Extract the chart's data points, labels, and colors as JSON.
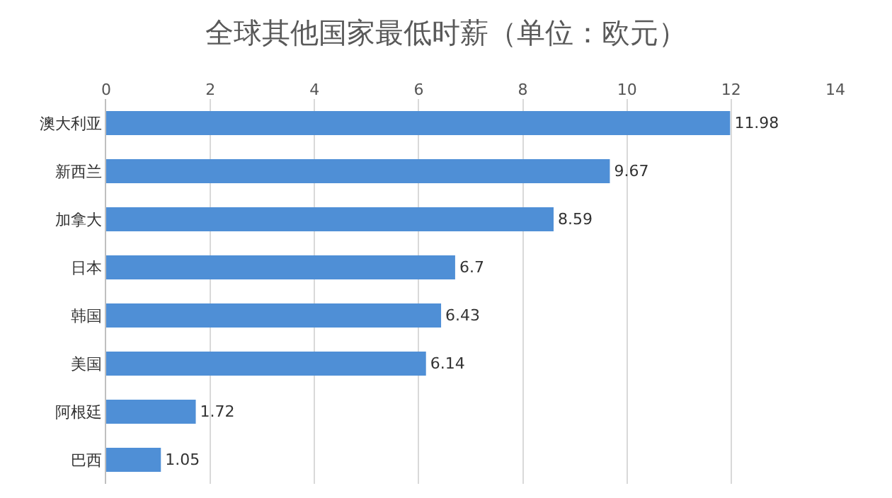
{
  "chart_data": {
    "type": "bar",
    "orientation": "horizontal",
    "title": "全球其他国家最低时薪（单位：欧元）",
    "categories": [
      "澳大利亚",
      "新西兰",
      "加拿大",
      "日本",
      "韩国",
      "美国",
      "阿根廷",
      "巴西"
    ],
    "values": [
      11.98,
      9.67,
      8.59,
      6.7,
      6.43,
      6.14,
      1.72,
      1.05
    ],
    "color": "#4f8fd6",
    "xlim": [
      0,
      14
    ],
    "xticks": [
      0,
      2,
      4,
      6,
      8,
      10,
      12,
      14
    ],
    "grid": "x",
    "data_labels": true
  }
}
